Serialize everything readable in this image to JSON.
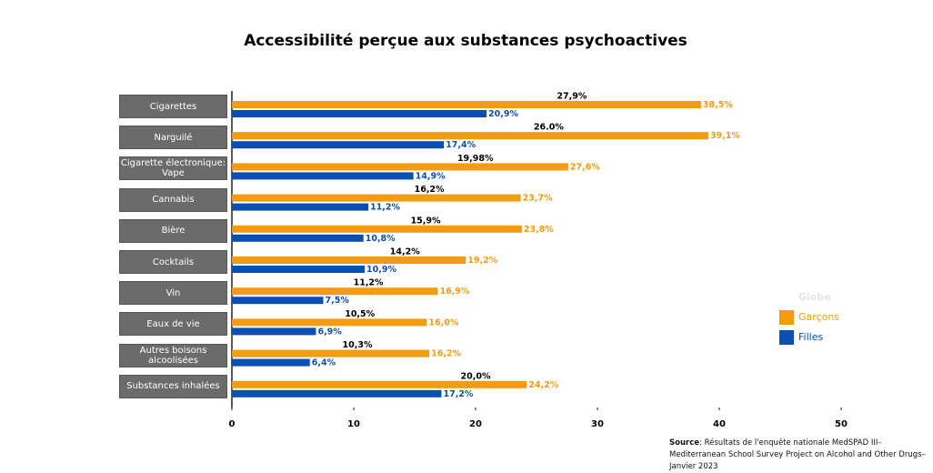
{
  "chart_data": {
    "type": "bar",
    "orientation": "horizontal",
    "title": "Accessibilité perçue aux substances psychoactives",
    "categories": [
      "Cigarettes",
      "Narguilé",
      "Cigarette électronique: Vape",
      "Cannabis",
      "Bière",
      "Cocktails",
      "Vin",
      "Eaux de vie",
      "Autres boisons alcoolisées",
      "Substances inhalées"
    ],
    "series": [
      {
        "name": "Globe",
        "values": [
          27.9,
          26.0,
          19.98,
          16.2,
          15.9,
          14.2,
          11.2,
          10.5,
          10.3,
          20.0
        ],
        "value_labels": [
          "27,9%",
          "26.0%",
          "19,98%",
          "16,2%",
          "15,9%",
          "14,2%",
          "11,2%",
          "10,5%",
          "10,3%",
          "20,0%"
        ]
      },
      {
        "name": "Garçons",
        "color": "#f39c12",
        "values": [
          38.5,
          39.1,
          27.6,
          23.7,
          23.8,
          19.2,
          16.9,
          16.0,
          16.2,
          24.2
        ],
        "value_labels": [
          "38,5%",
          "39,1%",
          "27,6%",
          "23,7%",
          "23,8%",
          "19,2%",
          "16,9%",
          "16,0%",
          "16,2%",
          "24,2%"
        ]
      },
      {
        "name": "Filles",
        "color": "#0b4fb3",
        "values": [
          20.9,
          17.4,
          14.9,
          11.2,
          10.8,
          10.9,
          7.5,
          6.9,
          6.4,
          17.2
        ],
        "value_labels": [
          "20,9%",
          "17,4%",
          "14,9%",
          "11,2%",
          "10,8%",
          "10,9%",
          "7,5%",
          "6,9%",
          "6,4%",
          "17,2%"
        ]
      }
    ],
    "xlim": [
      0,
      50
    ],
    "xticks": [
      0,
      10,
      20,
      30,
      40,
      50
    ],
    "source_label": "Source",
    "source": ": Résultats de l'enquête nationale MedSPAD III–Mediterranean School Survey Project on Alcohol and Other Drugs–Janvier 2023"
  }
}
